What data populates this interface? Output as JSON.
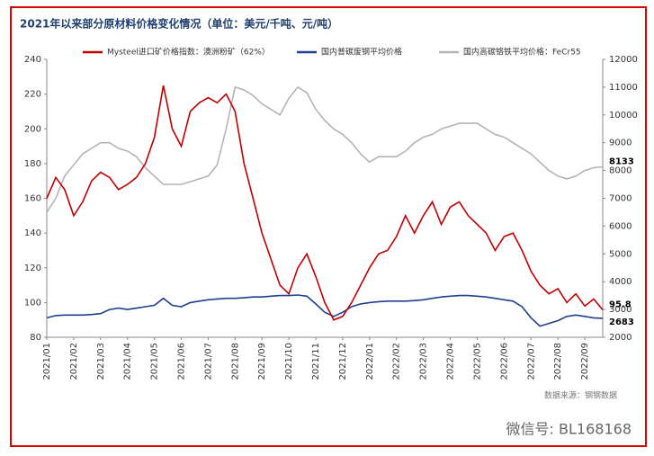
{
  "chart_data": {
    "type": "line",
    "title": "2021年以来部分原材料价格变化情况（单位：美元/千吨、元/吨）",
    "source": "数据来源：钢钢数据",
    "watermark": "微信号: BL168168",
    "annotations": [
      "8133",
      "95.8",
      "2683"
    ],
    "categories": [
      "2021/01",
      null,
      null,
      "2021/02",
      null,
      null,
      "2021/03",
      null,
      null,
      "2021/04",
      null,
      null,
      "2021/05",
      null,
      null,
      "2021/06",
      null,
      null,
      "2021/07",
      null,
      null,
      "2021/08",
      null,
      null,
      "2021/09",
      null,
      null,
      "2021/10",
      null,
      null,
      "2021/11",
      null,
      null,
      "2021/12",
      null,
      null,
      "2022/01",
      null,
      null,
      "2022/02",
      null,
      null,
      "2022/03",
      null,
      null,
      "2022/04",
      null,
      null,
      "2022/05",
      null,
      null,
      "2022/06",
      null,
      null,
      "2022/07",
      null,
      null,
      "2022/08",
      null,
      null,
      "2022/09",
      null,
      null
    ],
    "series": [
      {
        "name": "Mysteel进口矿价格指数：澳洲粉矿（62%）",
        "color": "#c00000",
        "values": [
          160,
          172,
          165,
          150,
          158,
          170,
          175,
          172,
          165,
          168,
          172,
          180,
          195,
          225,
          200,
          190,
          210,
          215,
          218,
          215,
          220,
          210,
          180,
          160,
          140,
          125,
          110,
          105,
          120,
          128,
          115,
          100,
          90,
          92,
          100,
          110,
          120,
          128,
          130,
          138,
          150,
          140,
          150,
          158,
          145,
          155,
          158,
          150,
          145,
          140,
          130,
          138,
          140,
          130,
          118,
          110,
          105,
          108,
          100,
          105,
          98,
          102,
          95.8
        ]
      },
      {
        "name": "国内普碳废钢平均价格",
        "color": "#1f3f8f",
        "axis": "y2",
        "values": [
          2700,
          2780,
          2800,
          2800,
          2800,
          2820,
          2850,
          3000,
          3050,
          3000,
          3050,
          3100,
          3150,
          3400,
          3150,
          3100,
          3250,
          3300,
          3350,
          3380,
          3400,
          3400,
          3420,
          3450,
          3450,
          3480,
          3500,
          3500,
          3520,
          3480,
          3200,
          2900,
          2750,
          2900,
          3100,
          3200,
          3250,
          3280,
          3300,
          3300,
          3300,
          3320,
          3350,
          3400,
          3450,
          3480,
          3500,
          3500,
          3480,
          3450,
          3400,
          3350,
          3300,
          3100,
          2700,
          2400,
          2500,
          2600,
          2750,
          2800,
          2750,
          2700,
          2683
        ]
      },
      {
        "name": "国内高碳铬铁平均价格：FeCr55",
        "color": "#b4b4b4",
        "axis": "y2",
        "values": [
          6500,
          7000,
          7800,
          8200,
          8600,
          8800,
          9000,
          9000,
          8800,
          8700,
          8500,
          8100,
          7800,
          7500,
          7500,
          7500,
          7600,
          7700,
          7800,
          8200,
          9500,
          11000,
          10900,
          10700,
          10400,
          10200,
          10000,
          10600,
          11000,
          10800,
          10200,
          9800,
          9500,
          9300,
          9000,
          8600,
          8300,
          8500,
          8500,
          8500,
          8700,
          9000,
          9200,
          9300,
          9500,
          9600,
          9700,
          9700,
          9700,
          9500,
          9300,
          9200,
          9000,
          8800,
          8600,
          8300,
          8000,
          7800,
          7700,
          7800,
          8000,
          8100,
          8133
        ]
      }
    ],
    "ylim": [
      80,
      240
    ],
    "yticks": [
      80,
      100,
      120,
      140,
      160,
      180,
      200,
      220,
      240
    ],
    "y2lim": [
      2000,
      12000
    ],
    "y2ticks": [
      2000,
      3000,
      4000,
      5000,
      6000,
      7000,
      8000,
      9000,
      10000,
      11000,
      12000
    ]
  }
}
